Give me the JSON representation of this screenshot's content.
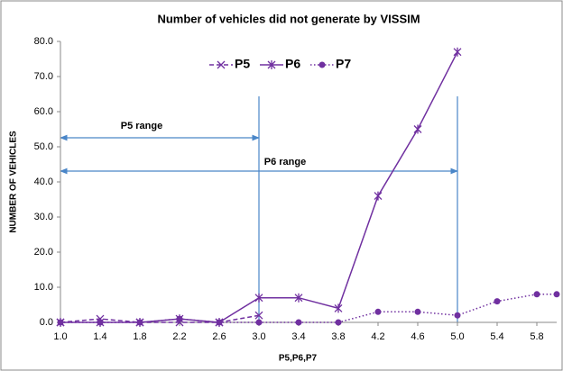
{
  "chart_data": {
    "type": "line",
    "title": "Number of vehicles did not generate by VISSIM",
    "xlabel": "P5,P6,P7",
    "ylabel": "NUMBER OF VEHICLES",
    "xlim": [
      1.0,
      6.0
    ],
    "xticks": [
      {
        "value": 1.0,
        "label": "1.0"
      },
      1.4,
      1.8,
      2.2,
      2.6,
      {
        "value": 3.0,
        "label": "3.0"
      },
      3.4,
      3.8,
      4.2,
      4.6,
      {
        "value": 5.0,
        "label": "5.0"
      },
      5.4,
      5.8
    ],
    "ylim": [
      0,
      80
    ],
    "yticks": [
      {
        "value": 0,
        "label": "0.0"
      },
      {
        "value": 10,
        "label": "10.0"
      },
      {
        "value": 20,
        "label": "20.0"
      },
      {
        "value": 30,
        "label": "30.0"
      },
      {
        "value": 40,
        "label": "40.0"
      },
      {
        "value": 50,
        "label": "50.0"
      },
      {
        "value": 60,
        "label": "60.0"
      },
      {
        "value": 70,
        "label": "70.0"
      },
      {
        "value": 80,
        "label": "80.0"
      }
    ],
    "series": [
      {
        "name": "P5",
        "color": "#7030a0",
        "style": "dashed",
        "marker": "x",
        "x": [
          1.0,
          1.4,
          1.8,
          2.2,
          2.6,
          3.0
        ],
        "values": [
          0,
          1,
          0,
          0,
          0,
          2
        ]
      },
      {
        "name": "P6",
        "color": "#7030a0",
        "style": "solid",
        "marker": "star",
        "x": [
          1.0,
          1.4,
          1.8,
          2.2,
          2.6,
          3.0,
          3.4,
          3.8,
          4.2,
          4.6,
          5.0
        ],
        "values": [
          0,
          0,
          0,
          1,
          0,
          7,
          7,
          4,
          36,
          55,
          77
        ]
      },
      {
        "name": "P7",
        "color": "#7030a0",
        "style": "dotted",
        "marker": "circle",
        "x": [
          1.0,
          1.4,
          1.8,
          2.2,
          2.6,
          3.0,
          3.4,
          3.8,
          4.2,
          4.6,
          5.0,
          5.4,
          5.8,
          6.0
        ],
        "values": [
          0,
          0,
          0,
          1,
          0,
          0,
          0,
          0,
          3,
          3,
          2,
          6,
          8,
          8
        ]
      }
    ],
    "annotations": [
      "P5 range",
      "P6 range"
    ],
    "legend": "top"
  }
}
